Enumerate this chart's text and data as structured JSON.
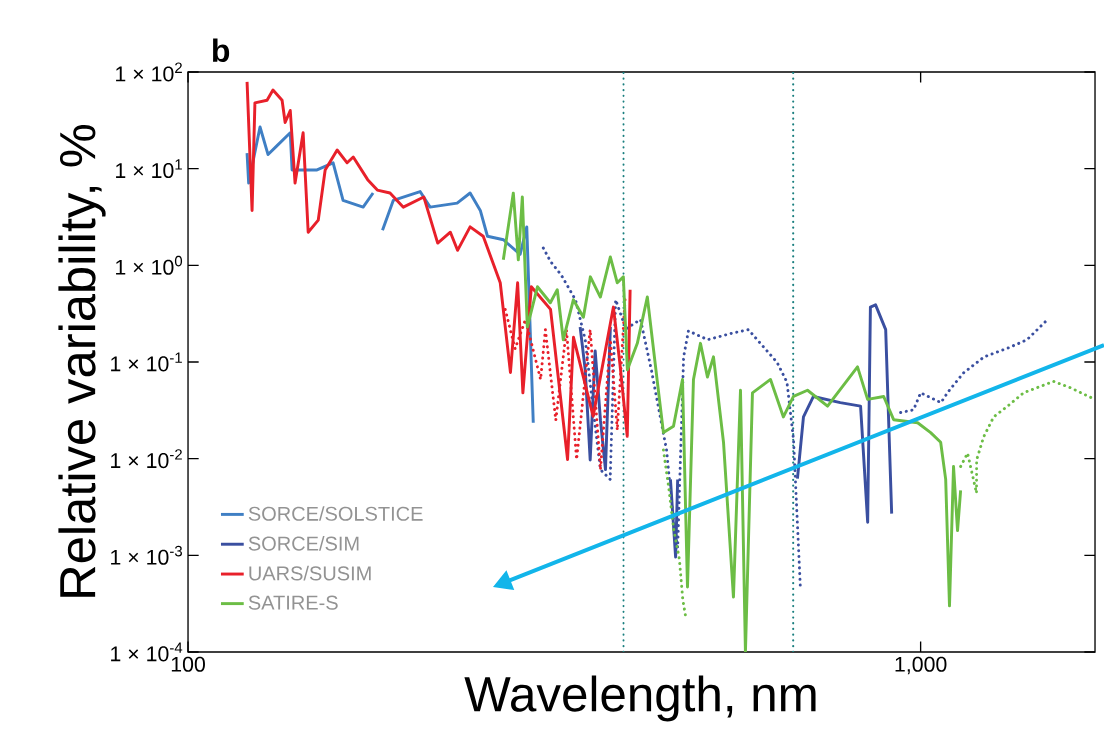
{
  "chart_data": {
    "type": "line",
    "title": "b",
    "xlabel": "Wavelength, nm",
    "ylabel": "Relative variability, %",
    "log": "xy",
    "xlim": [
      100,
      1730
    ],
    "ylim": [
      0.0001,
      100
    ],
    "xticks": [
      100,
      {
        "value": 1000,
        "label": "1,000"
      }
    ],
    "yticks": [
      {
        "value": 0.0001,
        "label": "1 × 10$^{-4}$"
      },
      {
        "value": 0.001,
        "label": "1 × 10$^{-3}$"
      },
      {
        "value": 0.01,
        "label": "1 × 10$^{-2}$"
      },
      {
        "value": 0.1,
        "label": "1 × 10$^{-1}$"
      },
      {
        "value": 1,
        "label": "1 × 10$^{0}$"
      },
      {
        "value": 10,
        "label": "1 × 10$^{1}$"
      },
      {
        "value": 100,
        "label": "1 × 10$^{2}$"
      }
    ],
    "legend": "bottom left",
    "grid": false,
    "marker": "none",
    "ref_lines": [
      {
        "axis": "x",
        "value": 393,
        "color": "#1a7f7f",
        "line_style": "dotted"
      },
      {
        "axis": "x",
        "value": 670,
        "color": "#1a7f7f",
        "line_style": "dotted"
      }
    ],
    "series": [
      {
        "name": "SORCE/SOLSTICE",
        "color": "#3f7fc4",
        "line_style": "solid",
        "x": [
          120.4,
          121,
          125.4,
          128.6,
          132,
          137.9,
          138.7,
          150,
          157.8,
          162.8,
          173.4,
          178.9,
          181,
          184.3,
          190.7,
          207.4,
          214,
          233,
          242.7,
          250.6,
          256.3,
          269.6,
          272.6,
          284,
          290,
          296
        ],
        "values": [
          14.5,
          7.1,
          27,
          14,
          17,
          23.5,
          9.7,
          9.7,
          11.5,
          4.7,
          4.0,
          5.6,
          null,
          2.3,
          4.7,
          5.8,
          4.0,
          4.4,
          5.6,
          3.7,
          2.0,
          1.84,
          1.7,
          1.3,
          2.5,
          0.0235
        ]
      },
      {
        "name": "SORCE/SIM",
        "color": "#3a4fa0",
        "line_style": "solid",
        "x": [
          343,
          348.5,
          354,
          359.6,
          365.6,
          371.4,
          377.2,
          420,
          455.5,
          463,
          466,
          600,
          679,
          692,
          714,
          777,
          828,
          846.7,
          854,
          868,
          896,
          913
        ],
        "values": [
          0.23,
          0.083,
          0.0097,
          0.13,
          0.025,
          0.0077,
          0.23,
          null,
          0.0061,
          0.00096,
          0.0061,
          null,
          0.0062,
          0.027,
          0.044,
          0.038,
          0.035,
          0.0022,
          0.37,
          0.39,
          0.216,
          0.0027
        ]
      },
      {
        "color": "#3a4fa0",
        "line_style": "dotted",
        "x": [
          305.5,
          312.7,
          323,
          338,
          348.5,
          356,
          365.6,
          377,
          383.5,
          396,
          414.6,
          429,
          450,
          459.5,
          466,
          474.8,
          482,
          512,
          555,
          582,
          637,
          657,
          670.7,
          685.5,
          800,
          939,
          978,
          1000,
          1066,
          1090,
          1144,
          1221,
          1318,
          1397,
          1494
        ],
        "values": [
          1.51,
          1.09,
          0.8,
          0.44,
          0.17,
          0.041,
          0.0077,
          0.0061,
          0.44,
          0.22,
          0.275,
          0.083,
          0.0123,
          0.0024,
          0.0012,
          0.113,
          0.21,
          0.17,
          0.2,
          0.216,
          0.099,
          0.062,
          0.0158,
          0.00044,
          null,
          0.03,
          0.032,
          0.048,
          0.038,
          0.049,
          0.077,
          0.113,
          0.14,
          0.17,
          0.28
        ]
      },
      {
        "name": "UARS/SUSIM",
        "color": "#e8202a",
        "line_style": "solid",
        "x": [
          120.4,
          122.3,
          123.4,
          128.2,
          130.6,
          134.4,
          135.7,
          137.9,
          140.0,
          143.6,
          145.9,
          150.6,
          153.9,
          159.8,
          164.9,
          168.1,
          175.9,
          181.3,
          188.7,
          196.8,
          209.8,
          219.2,
          228.1,
          233.3,
          242.7,
          252.9,
          266.8,
          275.5,
          281.8,
          286.5,
          294.2,
          312.5,
          329.7,
          335.9,
          357.3,
          380.8,
          388.6,
          397.8,
          401.3
        ],
        "values": [
          79,
          3.7,
          48,
          51,
          65,
          51,
          30,
          40,
          7.1,
          23.5,
          2.2,
          2.94,
          9.7,
          15.6,
          11.5,
          13.2,
          7.7,
          6.0,
          5.6,
          4.0,
          5.1,
          1.7,
          2.2,
          1.43,
          2.5,
          2.0,
          0.66,
          0.078,
          0.66,
          0.048,
          0.6,
          0.35,
          0.0098,
          0.18,
          0.0274,
          0.37,
          0.097,
          0.017,
          0.56
        ]
      },
      {
        "color": "#e8202a",
        "line_style": "dotted",
        "x": [
          271,
          279.6,
          288.8,
          302.9,
          307.5,
          317.7,
          328.6,
          339.2,
          354,
          365.6,
          377.2,
          385.5,
          395
        ],
        "values": [
          0.35,
          0.137,
          0.275,
          0.066,
          0.216,
          0.025,
          0.216,
          0.0098,
          0.216,
          0.0077,
          0.17,
          0.0198,
          0.44
        ]
      },
      {
        "name": "SATIRE-S",
        "color": "#6cbd45",
        "line_style": "solid",
        "x": [
          269.4,
          278.0,
          282.4,
          286.0,
          290.5,
          299.9,
          312.3,
          319.2,
          325.3,
          335.7,
          346.5,
          354.2,
          365.5,
          377.1,
          385.5,
          392.9,
          397.9,
          410.5,
          423.6,
          437.2,
          445.6,
          459.9,
          473.1,
          480.6,
          489.7,
          500.6,
          511.7,
          521.5,
          538.2,
          555.3,
          567.7,
          576.6,
          589.5,
          623.9,
          649.7,
          670.6,
          700.9,
          746.4,
          820.1,
          846.6,
          890.4,
          918.7,
          990.6,
          1032,
          1065,
          1082,
          1095,
          1109,
          1123,
          1134
        ],
        "values": [
          1.14,
          5.6,
          1.14,
          5.1,
          0.23,
          0.6,
          0.41,
          0.56,
          0.17,
          0.44,
          0.29,
          0.76,
          0.47,
          1.22,
          0.66,
          0.76,
          0.083,
          0.156,
          0.47,
          0.062,
          0.0186,
          0.0216,
          0.066,
          0.00047,
          0.066,
          0.156,
          0.07,
          0.113,
          0.0148,
          0.00037,
          0.051,
          0.0001,
          0.048,
          0.066,
          0.027,
          0.044,
          0.051,
          0.035,
          0.089,
          0.041,
          0.044,
          0.0253,
          0.0235,
          0.0186,
          0.0148,
          0.0061,
          0.0003,
          0.0083,
          0.0018,
          0.0047
        ]
      },
      {
        "color": "#6cbd45",
        "line_style": "dotted",
        "x": [
          445.6,
          453.6,
          460,
          468.5,
          473.5,
          478.4,
          800,
          1134,
          1159,
          1192,
          1192.5,
          1219,
          1258,
          1315,
          1382,
          1458,
          1519,
          1603,
          1707
        ],
        "values": [
          0.0123,
          0.0047,
          0.0019,
          0.00091,
          0.00035,
          0.00022,
          null,
          0.0083,
          0.0114,
          0.0044,
          0.0097,
          0.0168,
          0.027,
          0.035,
          0.048,
          0.056,
          0.063,
          0.054,
          0.043
        ]
      }
    ]
  }
}
